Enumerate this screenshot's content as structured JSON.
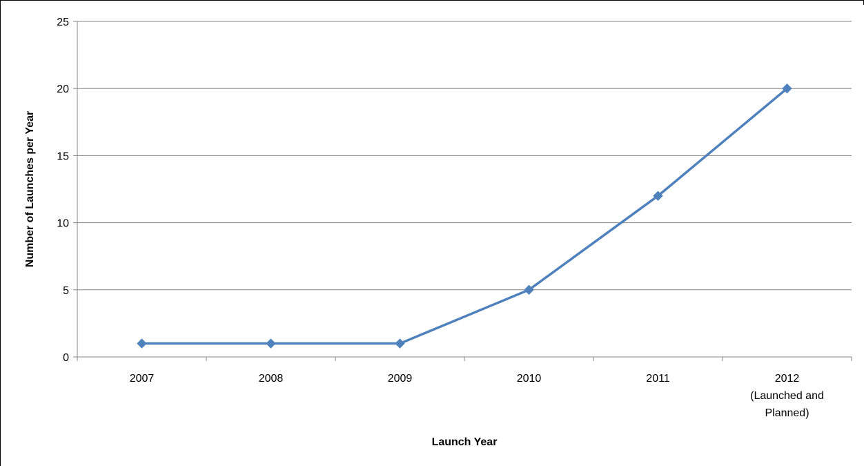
{
  "chart_data": {
    "type": "line",
    "title": "",
    "xlabel": "Launch Year",
    "ylabel": "Number of Launches per Year",
    "categories": [
      [
        "2007"
      ],
      [
        "2008"
      ],
      [
        "2009"
      ],
      [
        "2010"
      ],
      [
        "2011"
      ],
      [
        "2012",
        "(Launched and",
        "Planned)"
      ]
    ],
    "series": [
      {
        "values": [
          1,
          1,
          1,
          5,
          12,
          20
        ],
        "color": "#4F81BD",
        "marker": "diamond"
      }
    ],
    "ylim": [
      0,
      25
    ],
    "yticks": [
      0,
      5,
      10,
      15,
      20,
      25
    ],
    "grid": true,
    "legend": "none"
  }
}
